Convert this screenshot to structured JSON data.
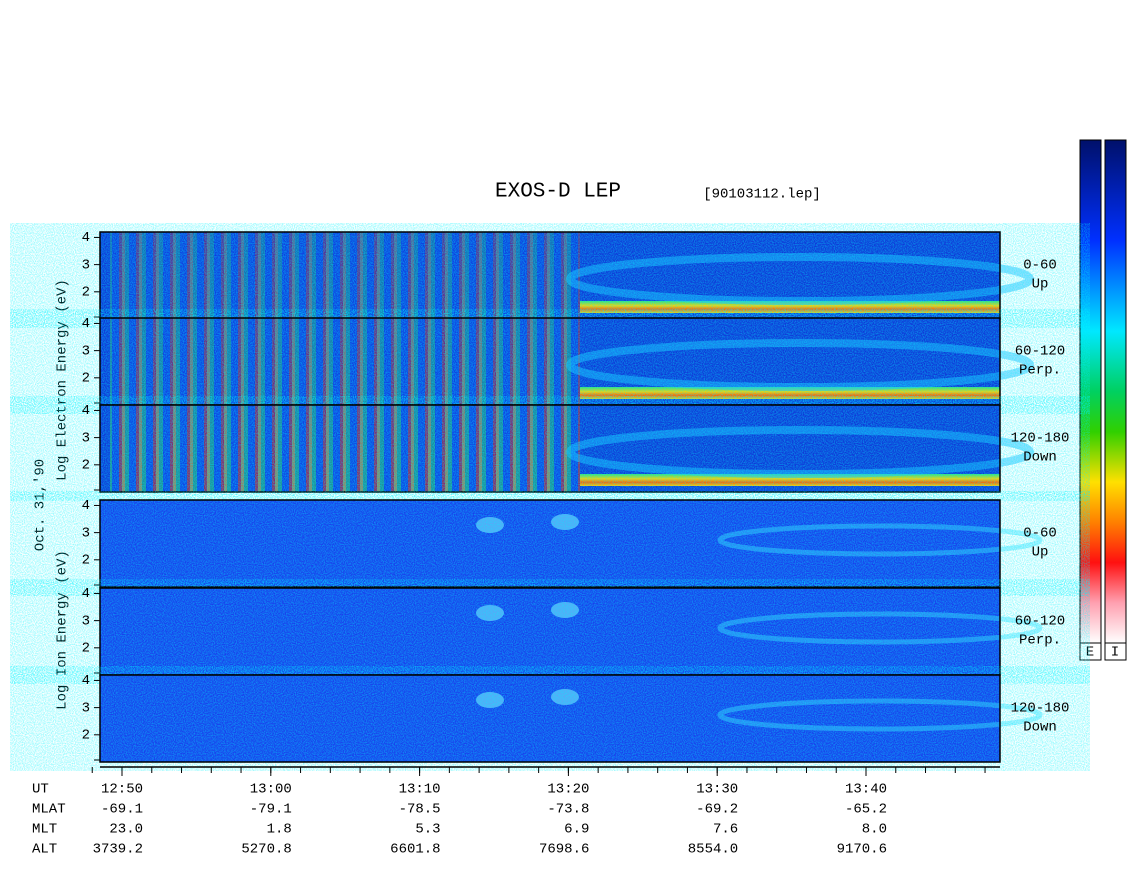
{
  "header": {
    "title": "EXOS-D LEP",
    "file": "[90103112.lep]"
  },
  "date": "Oct. 31,'90",
  "energy_axis": {
    "ylim": [
      1,
      4.2
    ],
    "yticks": [
      2,
      3,
      4
    ]
  },
  "electron": {
    "axis_label": "Log  Electron  Energy (eV)",
    "panels": [
      {
        "angle": "0-60",
        "direction": "Up"
      },
      {
        "angle": "60-120",
        "direction": "Perp."
      },
      {
        "angle": "120-180",
        "direction": "Down"
      }
    ]
  },
  "ion": {
    "axis_label": "Log  Ion  Energy (eV)",
    "panels": [
      {
        "angle": "0-60",
        "direction": "Up"
      },
      {
        "angle": "60-120",
        "direction": "Perp."
      },
      {
        "angle": "120-180",
        "direction": "Down"
      }
    ]
  },
  "time_axis": {
    "label": "UT",
    "ticks": [
      "12:50",
      "13:00",
      "13:10",
      "13:20",
      "13:30",
      "13:40"
    ]
  },
  "ephemeris": [
    {
      "name": "MLAT",
      "values": [
        "-69.1",
        "-79.1",
        "-78.5",
        "-73.8",
        "-69.2",
        "-65.2"
      ]
    },
    {
      "name": "MLT",
      "values": [
        "23.0",
        "1.8",
        "5.3",
        "6.9",
        "7.6",
        "8.0"
      ]
    },
    {
      "name": "ALT",
      "values": [
        "3739.2",
        "5270.8",
        "6601.8",
        "7698.6",
        "8554.0",
        "9170.6"
      ]
    }
  ],
  "colorbar": {
    "labels": [
      "E",
      "I"
    ]
  }
}
